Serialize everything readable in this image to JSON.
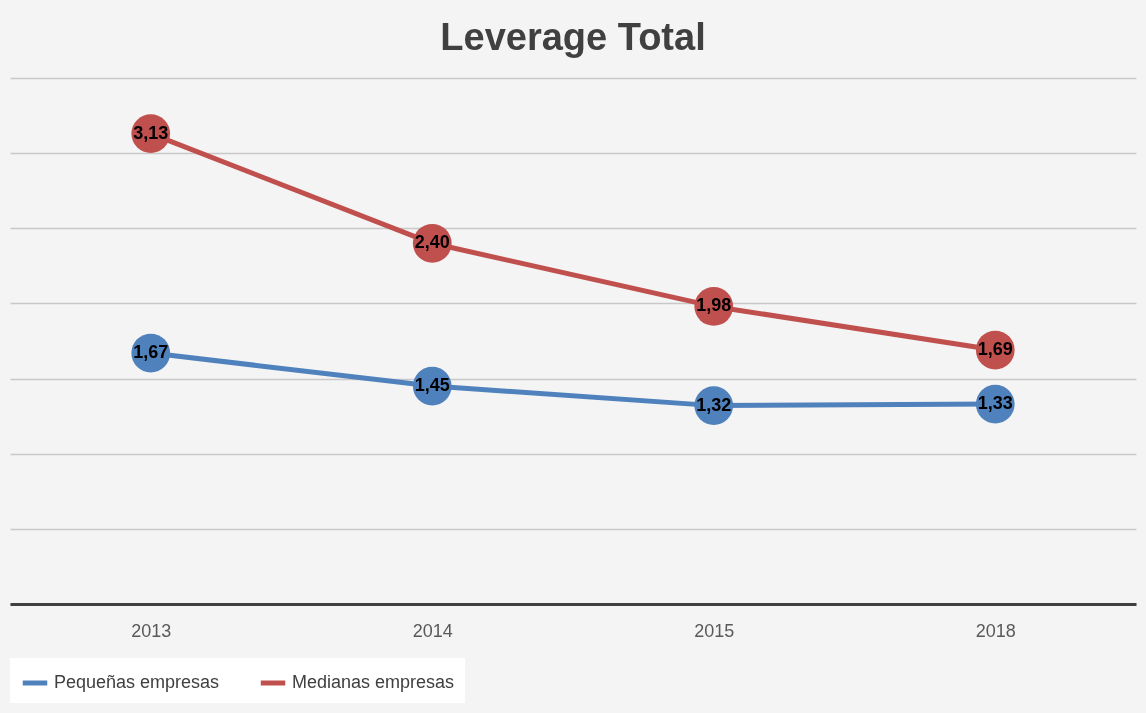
{
  "chart_data": {
    "type": "line",
    "title": "Leverage Total",
    "categories": [
      "2013",
      "2014",
      "2015",
      "2018"
    ],
    "series": [
      {
        "name": "Pequeñas empresas",
        "color": "#4f81bd",
        "values": [
          1.67,
          1.45,
          1.32,
          1.33
        ],
        "value_labels": [
          "1,67",
          "1,45",
          "1,32",
          "1,33"
        ]
      },
      {
        "name": "Medianas empresas",
        "color": "#c0504d",
        "values": [
          3.13,
          2.4,
          1.98,
          1.69
        ],
        "value_labels": [
          "3,13",
          "2,40",
          "1,98",
          "1,69"
        ]
      }
    ],
    "ylim": [
      0,
      3.5
    ],
    "yticks": [
      0,
      0.5,
      1,
      1.5,
      2,
      2.5,
      3,
      3.5
    ],
    "grid": "y",
    "tick_labels": "x",
    "legend": "bottom",
    "marker": "circle",
    "line_style": "solid"
  }
}
